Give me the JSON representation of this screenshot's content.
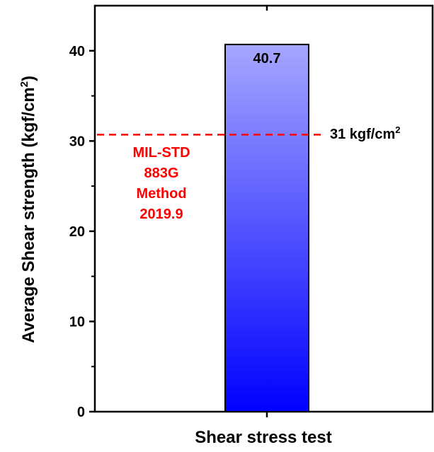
{
  "chart_data": {
    "type": "bar",
    "categories": [
      ""
    ],
    "values": [
      40.7
    ],
    "data_labels": [
      "40.7"
    ],
    "xlabel": "Shear stress test",
    "ylabel": "Average Shear strength (kgf/cm",
    "ylabel_sup": "2",
    "ylabel_tail": ")",
    "ylim": [
      0,
      45
    ],
    "yticks": [
      0,
      10,
      20,
      30,
      40
    ],
    "ytick_labels": [
      "0",
      "10",
      "20",
      "30",
      "40"
    ],
    "grid": false,
    "bar_gradient": [
      "#0000ff",
      "#a6a6ff"
    ],
    "reference_line": {
      "value": 30.7,
      "label": "31 kgf/cm",
      "label_sup": "2",
      "color": "#ff0000",
      "style": "dashed"
    },
    "annotation": {
      "lines": [
        "MIL-STD",
        "883G",
        "Method",
        "2019.9"
      ],
      "color": "#ff0000"
    }
  }
}
